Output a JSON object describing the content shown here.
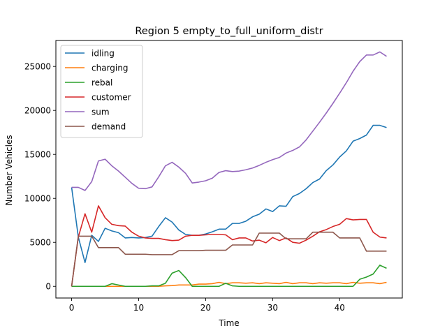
{
  "chart_data": {
    "type": "line",
    "title": "Region 5 empty_to_full_uniform_distr",
    "xlabel": "Time",
    "ylabel": "Number Vehicles",
    "xlim": [
      -2.35,
      49.35
    ],
    "ylim": [
      -1330,
      27950
    ],
    "xticks": [
      0,
      10,
      20,
      30,
      40
    ],
    "yticks": [
      0,
      5000,
      10000,
      15000,
      20000,
      25000
    ],
    "legend_position": "upper-left",
    "x": [
      0,
      1,
      2,
      3,
      4,
      5,
      6,
      7,
      8,
      9,
      10,
      11,
      12,
      13,
      14,
      15,
      16,
      17,
      18,
      19,
      20,
      21,
      22,
      23,
      24,
      25,
      26,
      27,
      28,
      29,
      30,
      31,
      32,
      33,
      34,
      35,
      36,
      37,
      38,
      39,
      40,
      41,
      42,
      43,
      44,
      45,
      46,
      47
    ],
    "series": [
      {
        "name": "idling",
        "color": "#1f77b4",
        "values": [
          11250,
          5600,
          2700,
          5800,
          5100,
          6600,
          6300,
          6100,
          5500,
          5550,
          5500,
          5550,
          5700,
          6800,
          7800,
          7300,
          6400,
          5900,
          5800,
          5800,
          5950,
          6200,
          6500,
          6500,
          7150,
          7150,
          7400,
          7900,
          8200,
          8800,
          8500,
          9150,
          9100,
          10200,
          10550,
          11100,
          11800,
          12200,
          13150,
          13800,
          14700,
          15400,
          16500,
          16800,
          17200,
          18300,
          18300,
          18050
        ]
      },
      {
        "name": "charging",
        "color": "#ff7f0e",
        "values": [
          0,
          0,
          0,
          0,
          0,
          0,
          0,
          0,
          0,
          0,
          0,
          0,
          0,
          0,
          50,
          80,
          150,
          150,
          150,
          250,
          250,
          300,
          450,
          300,
          400,
          400,
          350,
          400,
          300,
          400,
          350,
          300,
          450,
          300,
          400,
          400,
          300,
          400,
          350,
          400,
          400,
          300,
          450,
          350,
          400,
          400,
          300,
          450
        ]
      },
      {
        "name": "rebal",
        "color": "#2ca02c",
        "values": [
          0,
          0,
          0,
          0,
          0,
          0,
          300,
          150,
          0,
          0,
          0,
          0,
          50,
          50,
          350,
          1500,
          1800,
          1000,
          0,
          0,
          0,
          0,
          0,
          350,
          50,
          0,
          0,
          0,
          0,
          0,
          0,
          0,
          0,
          0,
          0,
          0,
          0,
          0,
          0,
          0,
          0,
          0,
          0,
          800,
          1050,
          1400,
          2400,
          2050
        ]
      },
      {
        "name": "customer",
        "color": "#d62728",
        "values": [
          0,
          5600,
          8250,
          6150,
          9150,
          7800,
          7050,
          6900,
          6850,
          6150,
          5700,
          5500,
          5450,
          5450,
          5300,
          5200,
          5250,
          5700,
          5800,
          5800,
          5850,
          5900,
          5900,
          5850,
          5300,
          5500,
          5500,
          5150,
          5250,
          4950,
          5550,
          5200,
          5500,
          5000,
          4900,
          5250,
          5700,
          6200,
          6450,
          6800,
          7050,
          7700,
          7550,
          7600,
          7600,
          6150,
          5600,
          5500
        ]
      },
      {
        "name": "sum",
        "color": "#9467bd",
        "values": [
          11250,
          11250,
          10900,
          11900,
          14250,
          14450,
          13700,
          13100,
          12400,
          11700,
          11150,
          11100,
          11300,
          12450,
          13700,
          14100,
          13550,
          12850,
          11750,
          11850,
          12000,
          12300,
          12950,
          13150,
          13050,
          13100,
          13250,
          13450,
          13750,
          14100,
          14400,
          14650,
          15150,
          15450,
          15850,
          16650,
          17650,
          18650,
          19700,
          20800,
          21950,
          23150,
          24450,
          25550,
          26300,
          26300,
          26650,
          26150
        ]
      },
      {
        "name": "demand",
        "color": "#8c564b",
        "values": [
          0,
          5700,
          5700,
          5700,
          4400,
          4400,
          4400,
          4400,
          3650,
          3650,
          3650,
          3650,
          3600,
          3600,
          3600,
          3600,
          4050,
          4050,
          4050,
          4050,
          4100,
          4100,
          4100,
          4100,
          4700,
          4700,
          4700,
          4700,
          6050,
          6050,
          6050,
          6050,
          5400,
          5400,
          5400,
          5400,
          6150,
          6150,
          6150,
          6150,
          5500,
          5500,
          5500,
          5500,
          4000,
          4000,
          4000,
          4000
        ]
      }
    ]
  }
}
